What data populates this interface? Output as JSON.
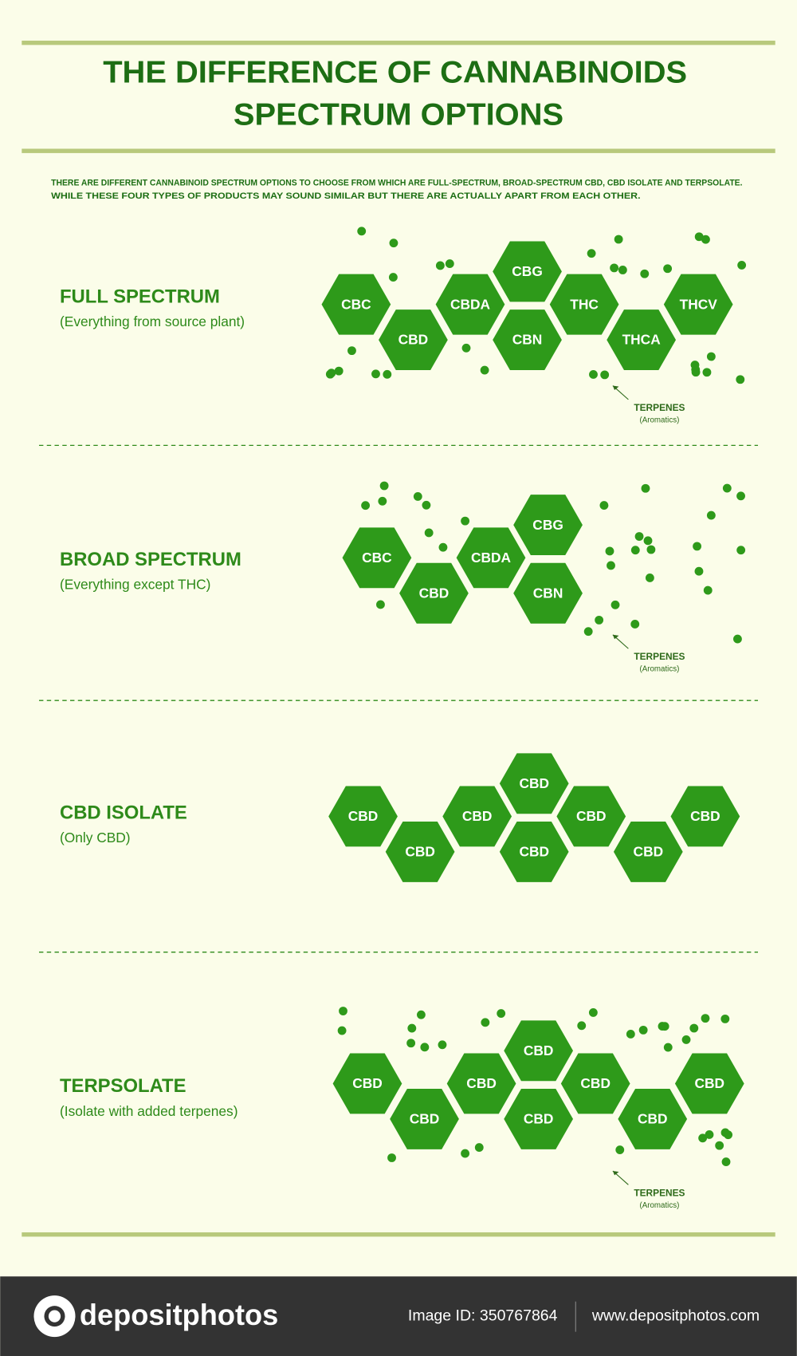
{
  "header": {
    "title_lines": [
      "THE DIFFERENCE OF CANNABINOIDS",
      "SPECTRUM OPTIONS"
    ],
    "intro_lines": [
      "THERE ARE DIFFERENT CANNABINOID SPECTRUM OPTIONS TO CHOOSE FROM WHICH ARE FULL-SPECTRUM, BROAD-SPECTRUM CBD, CBD ISOLATE AND TERPSOLATE.",
      "WHILE THESE FOUR TYPES OF PRODUCTS MAY SOUND SIMILAR BUT THERE ARE ACTUALLY APART FROM EACH OTHER."
    ]
  },
  "sections": [
    {
      "title": "FULL SPECTRUM",
      "subtitle": "(Everything from source plant)",
      "hexagons": [
        "CBC",
        "CBD",
        "CBDA",
        "CBG",
        "CBN",
        "THC",
        "THCA",
        "THCV"
      ],
      "terpenes": {
        "label": "TERPENES",
        "note": "(Aromatics)"
      }
    },
    {
      "title": "BROAD SPECTRUM",
      "subtitle": "(Everything except THC)",
      "hexagons": [
        "CBC",
        "CBD",
        "CBDA",
        "CBG",
        "CBN"
      ],
      "terpenes": {
        "label": "TERPENES",
        "note": "(Aromatics)"
      }
    },
    {
      "title": "CBD ISOLATE",
      "subtitle": "(Only CBD)",
      "hexagons": [
        "CBD",
        "CBD",
        "CBD",
        "CBD",
        "CBD",
        "CBD",
        "CBD",
        "CBD"
      ]
    },
    {
      "title": "TERPSOLATE",
      "subtitle": "(Isolate with added terpenes)",
      "hexagons": [
        "CBD",
        "CBD",
        "CBD",
        "CBD",
        "CBD",
        "CBD",
        "CBD",
        "CBD"
      ],
      "terpenes": {
        "label": "TERPENES",
        "note": "(Aromatics)"
      }
    }
  ],
  "footer": {
    "brand": "depositphotos",
    "image_id": "Image ID: 350767864",
    "url": "www.depositphotos.com"
  }
}
